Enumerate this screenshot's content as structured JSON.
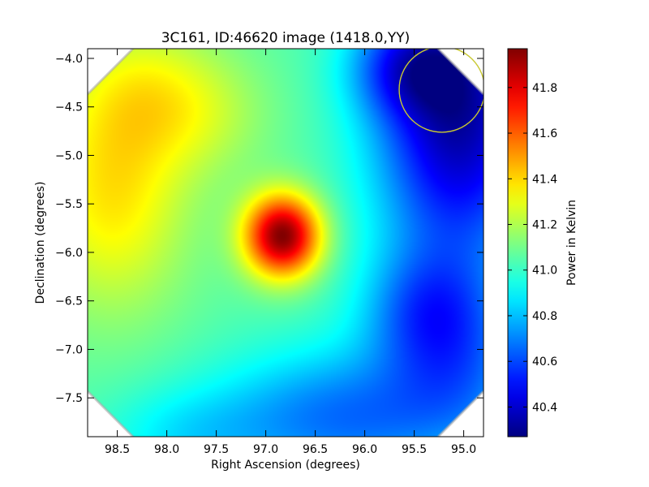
{
  "chart_data": {
    "type": "heatmap",
    "title": "3C161, ID:46620 image (1418.0,YY)",
    "xlabel": "Right Ascension (degrees)",
    "ylabel": "Declination (degrees)",
    "xlim": [
      98.8,
      94.8
    ],
    "ylim": [
      -7.9,
      -3.9
    ],
    "x_ticks": [
      98.5,
      98.0,
      97.5,
      97.0,
      96.5,
      96.0,
      95.5,
      95.0
    ],
    "x_tick_labels": [
      "98.5",
      "98.0",
      "97.5",
      "97.0",
      "96.5",
      "96.0",
      "95.5",
      "95.0"
    ],
    "y_ticks": [
      -4.0,
      -4.5,
      -5.0,
      -5.5,
      -6.0,
      -6.5,
      -7.0,
      -7.5
    ],
    "y_tick_labels": [
      "−4.0",
      "−4.5",
      "−5.0",
      "−5.5",
      "−6.0",
      "−6.5",
      "−7.0",
      "−7.5"
    ],
    "colormap": "jet",
    "colorbar": {
      "label": "Power in Kelvin",
      "min": 40.27,
      "max": 41.97,
      "ticks": [
        40.4,
        40.6,
        40.8,
        41.0,
        41.2,
        41.4,
        41.6,
        41.8
      ],
      "tick_labels": [
        "40.4",
        "40.6",
        "40.8",
        "41.0",
        "41.2",
        "41.4",
        "41.6",
        "41.8"
      ]
    },
    "background": 41.05,
    "field_components": [
      {
        "feature": "bright source",
        "ra": 96.83,
        "dec": -5.83,
        "amp": 0.92,
        "sx": 0.27,
        "sy": 0.3
      },
      {
        "feature": "warm region",
        "ra": 98.55,
        "dec": -5.4,
        "amp": 0.32,
        "sx": 0.55,
        "sy": 0.85
      },
      {
        "feature": "warm region",
        "ra": 98.2,
        "dec": -4.3,
        "amp": 0.18,
        "sx": 0.55,
        "sy": 0.5
      },
      {
        "feature": "warm region",
        "ra": 97.6,
        "dec": -4.6,
        "amp": 0.12,
        "sx": 0.5,
        "sy": 0.45
      },
      {
        "feature": "cold region",
        "ra": 95.05,
        "dec": -4.6,
        "amp": -0.72,
        "sx": 0.6,
        "sy": 1.1
      },
      {
        "feature": "cold region",
        "ra": 95.6,
        "dec": -4.1,
        "amp": -0.3,
        "sx": 0.4,
        "sy": 0.35
      },
      {
        "feature": "cold region",
        "ra": 96.2,
        "dec": -7.7,
        "amp": -0.38,
        "sx": 0.9,
        "sy": 0.5
      },
      {
        "feature": "cold region",
        "ra": 95.4,
        "dec": -6.6,
        "amp": -0.3,
        "sx": 0.45,
        "sy": 0.45
      },
      {
        "feature": "cold region",
        "ra": 95.0,
        "dec": -7.2,
        "amp": -0.25,
        "sx": 0.5,
        "sy": 0.6
      },
      {
        "feature": "cold region",
        "ra": 97.8,
        "dec": -7.9,
        "amp": -0.15,
        "sx": 0.6,
        "sy": 0.35
      }
    ],
    "beam_circle": {
      "ra": 95.22,
      "dec": -4.32,
      "radius_deg": 0.36,
      "color": "#c8c832"
    },
    "grid": false,
    "corner_mask": {
      "color": "#ffffff",
      "edge_color": "#aaaaaa"
    }
  }
}
